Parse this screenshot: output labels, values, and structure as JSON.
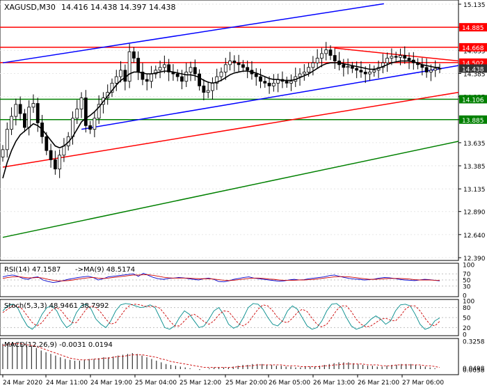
{
  "header": {
    "symbol": "XAGUSD,M30",
    "ohlc": "14.416 14.438 14.397 14.438"
  },
  "panels": {
    "rsi": {
      "title": "RSI(14) 47.1587",
      "ma_label": "->MA(9) 48.5174"
    },
    "stoch": {
      "title": "Stoch(5,3,3) 48.9461 38.7992"
    },
    "macd": {
      "title": "MACD(12,26,9) -0.0031 0.0194"
    }
  },
  "colors": {
    "red": "#ff0000",
    "blue": "#0000ff",
    "green": "#008000",
    "rsi_blue": "#0000cc",
    "rsi_red": "#cc0000",
    "stoch_cyan": "#008b8b",
    "stoch_red": "#cc0000",
    "macd_red": "#cc0000",
    "price_box": "#333333"
  },
  "chart_data": {
    "type": "candlestick",
    "x_ticks": [
      "24 Mar 2020",
      "24 Mar 11:00",
      "24 Mar 19:00",
      "25 Mar 04:00",
      "25 Mar 12:00",
      "25 Mar 20:00",
      "26 Mar 05:00",
      "26 Mar 13:00",
      "26 Mar 21:00",
      "27 Mar 06:00"
    ],
    "price_axis": {
      "ylim": [
        12.39,
        15.15
      ],
      "ticks": [
        "15.135",
        "14.885",
        "14.635",
        "14.385",
        "14.135",
        "13.885",
        "13.635",
        "13.385",
        "13.135",
        "12.890",
        "12.640",
        "12.390"
      ],
      "level_tags": [
        "14.885",
        "14.668",
        "14.502",
        "14.106",
        "13.885"
      ],
      "current_price": "14.438",
      "current_price_value": 14.438
    },
    "horizontal_levels": [
      {
        "value": 14.885,
        "color": "red"
      },
      {
        "value": 14.668,
        "color": "red"
      },
      {
        "value": 14.502,
        "color": "red"
      },
      {
        "value": 14.106,
        "color": "green"
      },
      {
        "value": 13.885,
        "color": "green"
      }
    ],
    "trend_lines": [
      {
        "color": "blue",
        "start": [
          0,
          14.5
        ],
        "end": [
          92,
          15.14
        ]
      },
      {
        "color": "blue",
        "start": [
          19,
          13.78
        ],
        "end": [
          110,
          14.47
        ]
      },
      {
        "color": "red",
        "start": [
          0,
          13.37
        ],
        "end": [
          110,
          14.18
        ]
      },
      {
        "color": "green",
        "start": [
          0,
          12.61
        ],
        "end": [
          110,
          13.65
        ]
      },
      {
        "color": "red",
        "start": [
          80,
          14.66
        ],
        "end": [
          110,
          14.52
        ]
      }
    ],
    "candles_close": [
      13.56,
      13.78,
      13.92,
      14.05,
      13.95,
      13.8,
      14.02,
      14.06,
      13.85,
      13.7,
      13.55,
      13.45,
      13.35,
      13.5,
      13.6,
      13.7,
      13.9,
      14.0,
      14.12,
      13.82,
      13.78,
      13.9,
      14.05,
      14.12,
      14.18,
      14.28,
      14.35,
      14.42,
      14.3,
      14.62,
      14.55,
      14.4,
      14.32,
      14.3,
      14.38,
      14.42,
      14.45,
      14.48,
      14.4,
      14.38,
      14.35,
      14.3,
      14.4,
      14.45,
      14.38,
      14.25,
      14.18,
      14.2,
      14.28,
      14.35,
      14.4,
      14.48,
      14.52,
      14.5,
      14.48,
      14.45,
      14.42,
      14.38,
      14.35,
      14.3,
      14.28,
      14.25,
      14.28,
      14.32,
      14.3,
      14.28,
      14.3,
      14.35,
      14.38,
      14.4,
      14.45,
      14.5,
      14.55,
      14.6,
      14.64,
      14.58,
      14.52,
      14.48,
      14.45,
      14.46,
      14.44,
      14.42,
      14.4,
      14.38,
      14.4,
      14.42,
      14.45,
      14.5,
      14.55,
      14.57,
      14.56,
      14.58,
      14.55,
      14.53,
      14.5,
      14.48,
      14.45,
      14.4,
      14.42,
      14.44,
      14.438
    ],
    "ma_line": [
      13.25,
      13.42,
      13.55,
      13.65,
      13.72,
      13.76,
      13.8,
      13.84,
      13.82,
      13.78,
      13.72,
      13.66,
      13.6,
      13.58,
      13.6,
      13.64,
      13.7,
      13.78,
      13.86,
      13.9,
      13.93,
      13.97,
      14.02,
      14.08,
      14.14,
      14.2,
      14.26,
      14.31,
      14.34,
      14.38,
      14.4,
      14.4,
      14.39,
      14.38,
      14.38,
      14.39,
      14.4,
      14.41,
      14.41,
      14.4,
      14.39,
      14.38,
      14.37,
      14.37,
      14.36,
      14.34,
      14.31,
      14.29,
      14.28,
      14.29,
      14.31,
      14.34,
      14.37,
      14.39,
      14.4,
      14.41,
      14.41,
      14.4,
      14.39,
      14.37,
      14.35,
      14.33,
      14.32,
      14.32,
      14.31,
      14.31,
      14.31,
      14.32,
      14.34,
      14.36,
      14.38,
      14.41,
      14.44,
      14.47,
      14.49,
      14.5,
      14.5,
      14.5,
      14.49,
      14.48,
      14.47,
      14.46,
      14.45,
      14.44,
      14.43,
      14.43,
      14.44,
      14.46,
      14.48,
      14.5,
      14.51,
      14.52,
      14.52,
      14.52,
      14.51,
      14.5,
      14.48,
      14.47,
      14.46,
      14.45,
      14.45
    ],
    "rsi": {
      "ylim": [
        0,
        100
      ],
      "ticks": [
        "100",
        "70",
        "50",
        "30",
        "0"
      ],
      "rsi": [
        60,
        64,
        66,
        62,
        55,
        52,
        58,
        60,
        50,
        45,
        42,
        44,
        48,
        52,
        55,
        58,
        60,
        62,
        58,
        50,
        54,
        60,
        62,
        64,
        66,
        68,
        70,
        62,
        72,
        65,
        58,
        54,
        52,
        55,
        56,
        58,
        57,
        54,
        52,
        50,
        54,
        56,
        52,
        45,
        44,
        47,
        52,
        55,
        58,
        60,
        56,
        54,
        52,
        50,
        48,
        46,
        47,
        50,
        52,
        50,
        51,
        54,
        56,
        58,
        60,
        64,
        66,
        62,
        58,
        55,
        53,
        52,
        50,
        51,
        53,
        56,
        58,
        57,
        55,
        52,
        50,
        49,
        48,
        50,
        52,
        51,
        49,
        47
      ],
      "ma": [
        55,
        58,
        60,
        61,
        59,
        57,
        57,
        58,
        56,
        52,
        49,
        47,
        47,
        48,
        50,
        53,
        55,
        57,
        58,
        56,
        55,
        56,
        58,
        60,
        62,
        64,
        66,
        66,
        67,
        67,
        65,
        62,
        59,
        57,
        56,
        56,
        56,
        56,
        55,
        54,
        54,
        54,
        53,
        51,
        49,
        48,
        49,
        51,
        53,
        55,
        56,
        56,
        55,
        53,
        52,
        50,
        49,
        49,
        49,
        50,
        50,
        51,
        52,
        54,
        56,
        58,
        60,
        61,
        61,
        60,
        58,
        56,
        54,
        52,
        52,
        53,
        54,
        55,
        55,
        55,
        54,
        53,
        51,
        50,
        50,
        50,
        49,
        48.5
      ]
    },
    "stoch": {
      "ylim": [
        0,
        100
      ],
      "ticks": [
        "100",
        "80",
        "50",
        "20",
        "0"
      ],
      "main": [
        70,
        85,
        90,
        80,
        50,
        25,
        15,
        30,
        60,
        80,
        85,
        70,
        40,
        20,
        30,
        65,
        85,
        90,
        75,
        45,
        30,
        20,
        40,
        70,
        88,
        92,
        90,
        85,
        80,
        82,
        88,
        80,
        50,
        20,
        15,
        25,
        50,
        70,
        60,
        40,
        20,
        25,
        45,
        70,
        80,
        60,
        30,
        18,
        25,
        50,
        80,
        92,
        90,
        75,
        50,
        30,
        25,
        40,
        70,
        85,
        75,
        50,
        25,
        15,
        20,
        40,
        70,
        90,
        92,
        80,
        50,
        25,
        15,
        20,
        30,
        45,
        55,
        45,
        30,
        40,
        70,
        88,
        90,
        85,
        60,
        30,
        15,
        20,
        40,
        48.9
      ],
      "signal": [
        65,
        75,
        85,
        85,
        75,
        55,
        35,
        25,
        35,
        55,
        72,
        80,
        70,
        50,
        35,
        35,
        55,
        75,
        85,
        80,
        65,
        45,
        30,
        35,
        55,
        75,
        88,
        90,
        88,
        84,
        83,
        84,
        78,
        60,
        40,
        25,
        25,
        40,
        55,
        60,
        50,
        38,
        30,
        40,
        58,
        70,
        68,
        50,
        32,
        25,
        35,
        55,
        75,
        88,
        85,
        70,
        50,
        38,
        35,
        48,
        65,
        75,
        68,
        48,
        30,
        22,
        30,
        50,
        72,
        85,
        85,
        68,
        45,
        30,
        22,
        25,
        35,
        45,
        48,
        42,
        40,
        55,
        75,
        85,
        85,
        70,
        48,
        30,
        25,
        38.8
      ]
    },
    "macd": {
      "ticks": [
        "0.3258",
        "0.0498",
        "0.0058"
      ],
      "histogram": [
        0.3,
        0.31,
        0.32,
        0.31,
        0.3,
        0.28,
        0.27,
        0.25,
        0.22,
        0.2,
        0.18,
        0.16,
        0.14,
        0.12,
        0.11,
        0.1,
        0.1,
        0.11,
        0.12,
        0.12,
        0.13,
        0.14,
        0.14,
        0.15,
        0.16,
        0.17,
        0.18,
        0.19,
        0.18,
        0.16,
        0.14,
        0.12,
        0.1,
        0.08,
        0.06,
        0.05,
        0.04,
        0.03,
        0.02,
        0.01,
        0.0,
        -0.01,
        0.0,
        0.01,
        0.02,
        0.02,
        0.02,
        0.02,
        0.03,
        0.04,
        0.05,
        0.05,
        0.06,
        0.06,
        0.06,
        0.05,
        0.05,
        0.04,
        0.04,
        0.03,
        0.03,
        0.02,
        0.02,
        0.03,
        0.03,
        0.03,
        0.04,
        0.05,
        0.06,
        0.07,
        0.08,
        0.08,
        0.08,
        0.07,
        0.06,
        0.05,
        0.04,
        0.04,
        0.03,
        0.03,
        0.04,
        0.05,
        0.05,
        0.06,
        0.06,
        0.06,
        0.05,
        0.04,
        0.03,
        0.02,
        0.01,
        0.0
      ],
      "signal": [
        0.28,
        0.29,
        0.3,
        0.3,
        0.3,
        0.29,
        0.28,
        0.27,
        0.25,
        0.23,
        0.21,
        0.19,
        0.17,
        0.15,
        0.13,
        0.12,
        0.11,
        0.11,
        0.11,
        0.12,
        0.12,
        0.13,
        0.13,
        0.14,
        0.15,
        0.15,
        0.16,
        0.17,
        0.17,
        0.17,
        0.16,
        0.15,
        0.14,
        0.12,
        0.11,
        0.09,
        0.08,
        0.07,
        0.06,
        0.05,
        0.04,
        0.03,
        0.02,
        0.02,
        0.02,
        0.02,
        0.02,
        0.02,
        0.02,
        0.03,
        0.03,
        0.04,
        0.04,
        0.05,
        0.05,
        0.05,
        0.05,
        0.05,
        0.05,
        0.04,
        0.04,
        0.04,
        0.03,
        0.03,
        0.03,
        0.03,
        0.03,
        0.04,
        0.04,
        0.05,
        0.05,
        0.06,
        0.06,
        0.06,
        0.06,
        0.06,
        0.05,
        0.05,
        0.05,
        0.04,
        0.04,
        0.04,
        0.05,
        0.05,
        0.05,
        0.05,
        0.05,
        0.05,
        0.04,
        0.04,
        0.03,
        0.02
      ]
    }
  }
}
